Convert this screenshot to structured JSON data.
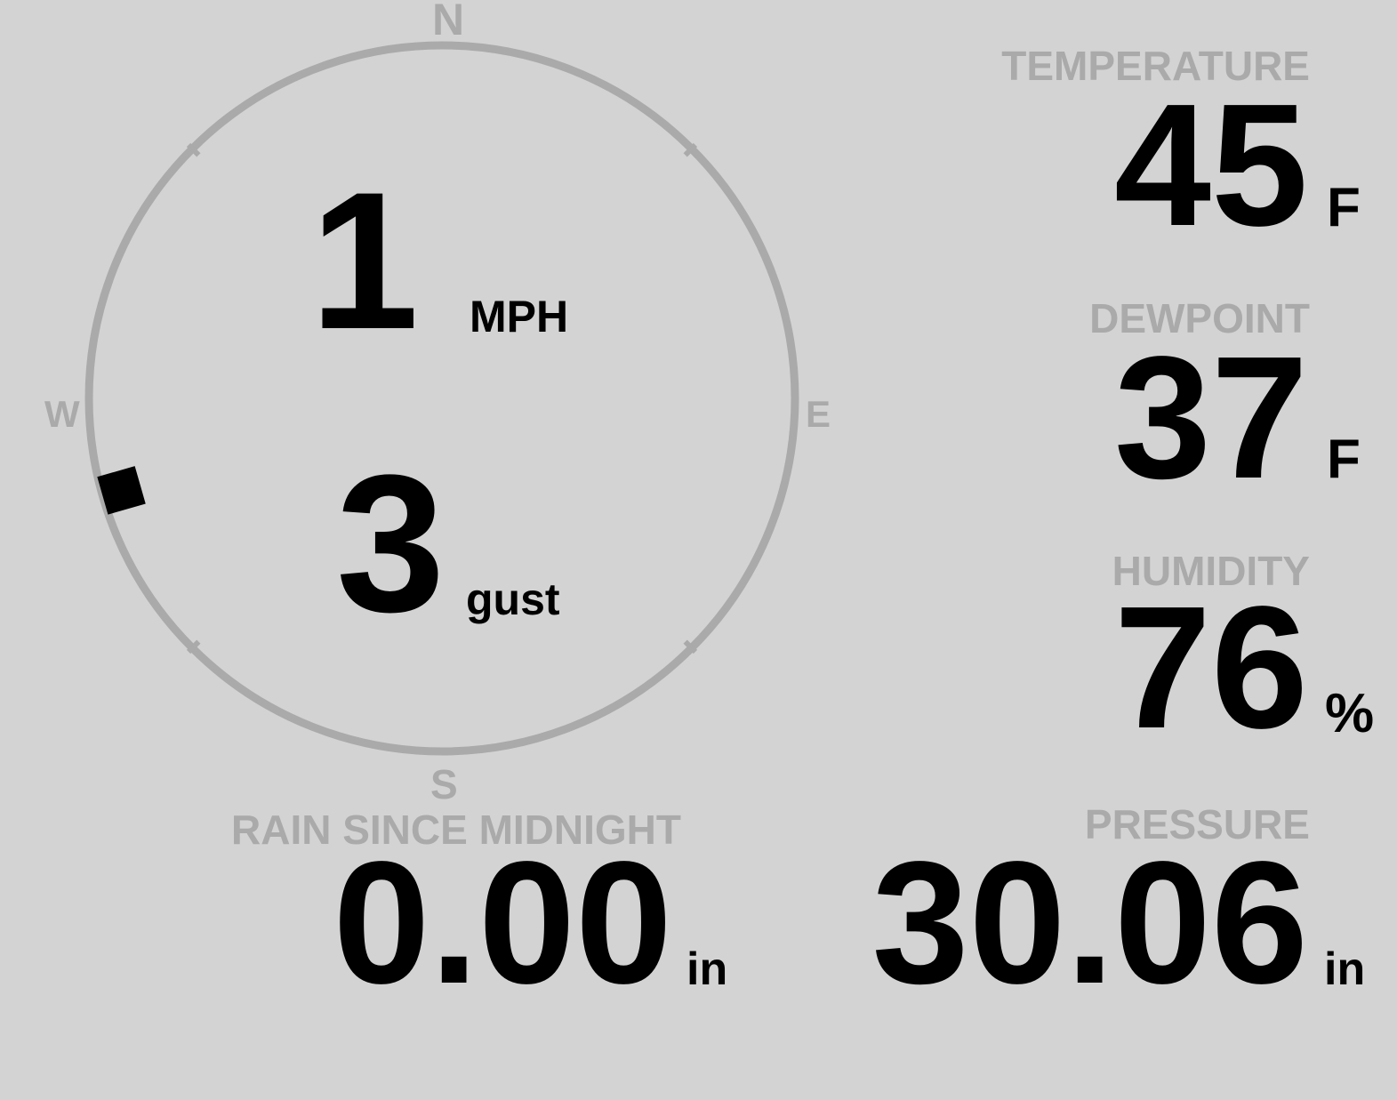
{
  "wind": {
    "speed": "1",
    "speed_unit": "MPH",
    "gust": "3",
    "gust_unit": "gust",
    "direction_deg": 254,
    "compass": {
      "n": "N",
      "e": "E",
      "s": "S",
      "w": "W"
    },
    "ring_color": "#aaaaaa"
  },
  "temperature": {
    "label": "TEMPERATURE",
    "value": "45",
    "unit": "F"
  },
  "dewpoint": {
    "label": "DEWPOINT",
    "value": "37",
    "unit": "F"
  },
  "humidity": {
    "label": "HUMIDITY",
    "value": "76",
    "unit": "%"
  },
  "rain": {
    "label": "RAIN SINCE MIDNIGHT",
    "value": "0.00",
    "unit": "in"
  },
  "pressure": {
    "label": "PRESSURE",
    "value": "30.06",
    "unit": "in"
  }
}
